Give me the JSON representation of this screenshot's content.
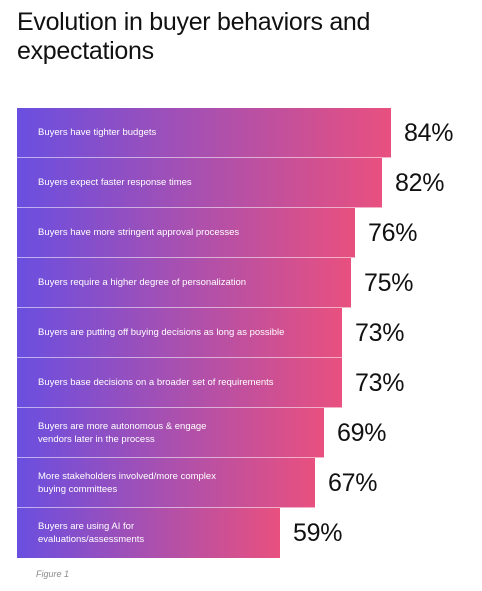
{
  "title": "Evolution in buyer behaviors and expectations",
  "caption": "Figure 1",
  "colors": {
    "gradient_start": "#6a4fe0",
    "gradient_end": "#e8507f"
  },
  "chart_data": {
    "type": "bar",
    "orientation": "horizontal",
    "title": "Evolution in buyer behaviors and expectations",
    "categories": [
      "Buyers have tighter budgets",
      "Buyers expect faster response times",
      "Buyers have more stringent approval processes",
      "Buyers require a higher degree of personalization",
      "Buyers are putting off buying decisions as long as possible",
      "Buyers base decisions on a broader set of requirements",
      "Buyers are more autonomous & engage\nvendors later in the process",
      "More stakeholders involved/more complex\nbuying committees",
      "Buyers are using AI for\nevaluations/assessments"
    ],
    "values": [
      84,
      82,
      76,
      75,
      73,
      73,
      69,
      67,
      59
    ],
    "value_labels": [
      "84%",
      "82%",
      "76%",
      "75%",
      "73%",
      "73%",
      "69%",
      "67%",
      "59%"
    ],
    "unit": "%"
  }
}
